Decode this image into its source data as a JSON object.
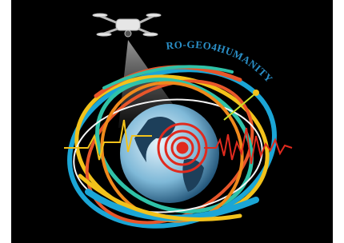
{
  "logo": {
    "title": "RO-GEO4HUMANITY"
  }
}
